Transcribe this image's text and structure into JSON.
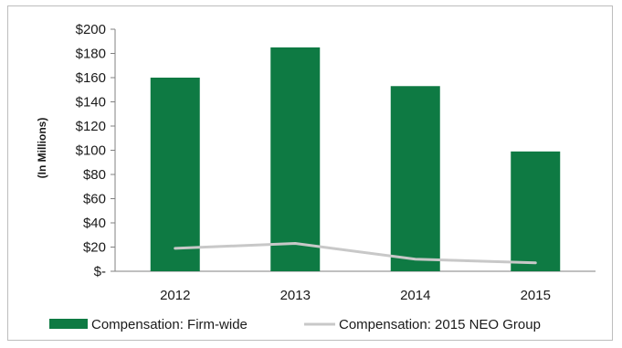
{
  "chart_data": {
    "type": "bar",
    "categories": [
      "2012",
      "2013",
      "2014",
      "2015"
    ],
    "series": [
      {
        "name": "Compensation: Firm-wide",
        "type": "bar",
        "color": "#0e7a43",
        "values": [
          160,
          185,
          153,
          99
        ]
      },
      {
        "name": "Compensation: 2015 NEO Group",
        "type": "line",
        "color": "#c8c8c8",
        "values": [
          19,
          23,
          10,
          7
        ]
      }
    ],
    "ylabel": "(In Millions)",
    "ylim": [
      0,
      200
    ],
    "yticks": [
      0,
      20,
      40,
      60,
      80,
      100,
      120,
      140,
      160,
      180,
      200
    ],
    "ytick_labels": [
      "$-",
      "$20",
      "$40",
      "$60",
      "$80",
      "$100",
      "$120",
      "$140",
      "$160",
      "$180",
      "$200"
    ],
    "grid": false,
    "legend_position": "bottom"
  }
}
